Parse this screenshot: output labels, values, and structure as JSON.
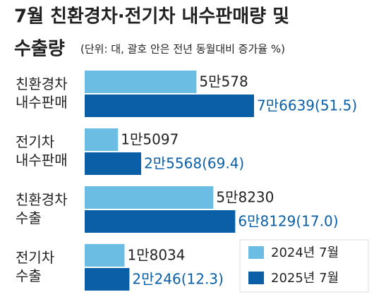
{
  "chart_data": {
    "type": "hbar",
    "title": "7월 친환경차·전기차 내수판매량 및",
    "title_line2": "수출량",
    "subtitle": "(단위: 대, 괄호 안은 전년 동월대비 증가율 %)",
    "categories": [
      "친환경차 내수판매",
      "전기차 내수판매",
      "친환경차 수출",
      "전기차 수출"
    ],
    "series": [
      {
        "name": "2024년 7월",
        "color": "#6bbde3",
        "label_color": "#222222",
        "values": [
          50578,
          15097,
          58230,
          18034
        ],
        "value_labels": [
          "5만578",
          "1만5097",
          "5만8230",
          "1만8034"
        ]
      },
      {
        "name": "2025년 7월",
        "color": "#0a5fa6",
        "label_color": "#0a5fa6",
        "values": [
          76639,
          25568,
          68129,
          20246
        ],
        "value_labels": [
          "7만6639(51.5)",
          "2만5568(69.4)",
          "6만8129(17.0)",
          "2만246(12.3)"
        ]
      }
    ],
    "legend": "bottom-right"
  }
}
